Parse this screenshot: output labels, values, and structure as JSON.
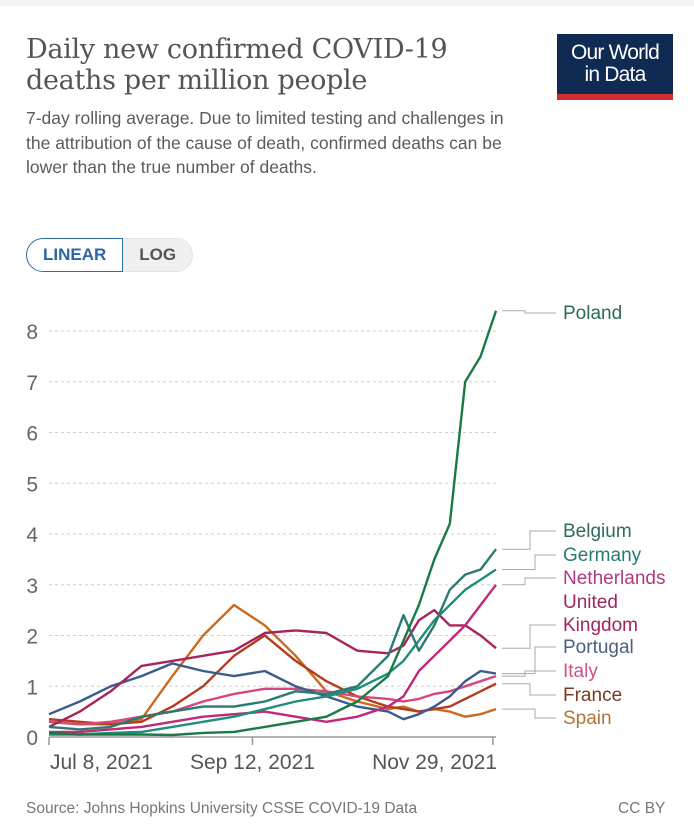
{
  "header": {
    "title": "Daily new confirmed COVID-19 deaths per million people",
    "title_line1": "Daily new confirmed COVID-19",
    "title_line2": "deaths per million people",
    "subtitle": "7-day rolling average. Due to limited testing and challenges in the attribution of the cause of death, confirmed deaths can be lower than the true number of deaths.",
    "logo_line1": "Our World",
    "logo_line2": "in Data"
  },
  "toggle": {
    "linear_label": "LINEAR",
    "log_label": "LOG",
    "selected": "LINEAR"
  },
  "footer": {
    "source": "Source: Johns Hopkins University CSSE COVID-19 Data",
    "license": "CC BY"
  },
  "chart_data": {
    "type": "line",
    "title": "Daily new confirmed COVID-19 deaths per million people",
    "xlabel": "",
    "ylabel": "",
    "ylim": [
      0,
      8.4
    ],
    "yticks": [
      "0",
      "1",
      "2",
      "3",
      "4",
      "5",
      "6",
      "7",
      "8"
    ],
    "xticks": [
      "Jul 8, 2021",
      "Sep 12, 2021",
      "Nov 29, 2021"
    ],
    "x_range_days": [
      0,
      145
    ],
    "x_tick_days": [
      0,
      66,
      144
    ],
    "grid": true,
    "legend": "right",
    "x_days": [
      0,
      10,
      20,
      30,
      40,
      50,
      60,
      70,
      80,
      90,
      100,
      110,
      115,
      120,
      125,
      130,
      135,
      140,
      145
    ],
    "series": [
      {
        "name": "Poland",
        "color": "#1a7a45",
        "values": [
          0.08,
          0.05,
          0.05,
          0.05,
          0.04,
          0.08,
          0.1,
          0.2,
          0.3,
          0.4,
          0.7,
          1.2,
          1.9,
          2.6,
          3.5,
          4.2,
          7.0,
          7.5,
          8.4
        ]
      },
      {
        "name": "Belgium",
        "color": "#2a7a6e",
        "values": [
          0.2,
          0.15,
          0.2,
          0.4,
          0.5,
          0.6,
          0.6,
          0.7,
          0.9,
          0.85,
          1.0,
          1.6,
          2.4,
          1.7,
          2.2,
          2.9,
          3.2,
          3.3,
          3.7
        ]
      },
      {
        "name": "Germany",
        "color": "#1f8e7a",
        "values": [
          0.05,
          0.05,
          0.08,
          0.1,
          0.2,
          0.3,
          0.4,
          0.55,
          0.7,
          0.8,
          0.95,
          1.25,
          1.5,
          1.9,
          2.3,
          2.6,
          2.9,
          3.1,
          3.3
        ]
      },
      {
        "name": "Netherlands",
        "color": "#c2287a",
        "values": [
          0.1,
          0.1,
          0.15,
          0.2,
          0.3,
          0.4,
          0.45,
          0.5,
          0.4,
          0.3,
          0.4,
          0.6,
          0.8,
          1.3,
          1.6,
          1.9,
          2.2,
          2.6,
          3.0
        ]
      },
      {
        "name": "United Kingdom",
        "color": "#a8245c",
        "values": [
          0.2,
          0.5,
          0.9,
          1.4,
          1.5,
          1.6,
          1.7,
          2.05,
          2.1,
          2.05,
          1.7,
          1.65,
          1.8,
          2.3,
          2.5,
          2.2,
          2.2,
          2.0,
          1.75
        ]
      },
      {
        "name": "Portugal",
        "color": "#3c5c8c",
        "values": [
          0.45,
          0.7,
          1.0,
          1.2,
          1.45,
          1.3,
          1.2,
          1.3,
          1.0,
          0.8,
          0.6,
          0.5,
          0.35,
          0.45,
          0.6,
          0.8,
          1.1,
          1.3,
          1.25
        ]
      },
      {
        "name": "Italy",
        "color": "#d9457e",
        "values": [
          0.3,
          0.25,
          0.3,
          0.4,
          0.5,
          0.7,
          0.85,
          0.95,
          0.95,
          0.9,
          0.8,
          0.75,
          0.7,
          0.75,
          0.85,
          0.9,
          1.0,
          1.1,
          1.2
        ]
      },
      {
        "name": "France",
        "color": "#b23c1f",
        "values": [
          0.35,
          0.3,
          0.25,
          0.3,
          0.6,
          1.0,
          1.6,
          2.0,
          1.5,
          1.1,
          0.8,
          0.6,
          0.55,
          0.5,
          0.55,
          0.6,
          0.75,
          0.9,
          1.05
        ]
      },
      {
        "name": "Spain",
        "color": "#c86b20",
        "values": [
          0.3,
          0.25,
          0.25,
          0.35,
          1.2,
          2.0,
          2.6,
          2.2,
          1.6,
          0.9,
          0.7,
          0.55,
          0.6,
          0.5,
          0.55,
          0.5,
          0.4,
          0.45,
          0.55
        ]
      }
    ],
    "labels": [
      {
        "name": "Poland",
        "text": [
          "Poland"
        ],
        "color": "#2f6b55"
      },
      {
        "name": "Belgium",
        "text": [
          "Belgium"
        ],
        "color": "#2f6b5e"
      },
      {
        "name": "Germany",
        "text": [
          "Germany"
        ],
        "color": "#2a7a6e"
      },
      {
        "name": "Netherlands",
        "text": [
          "Netherlands"
        ],
        "color": "#b03a82"
      },
      {
        "name": "United Kingdom",
        "text": [
          "United",
          "Kingdom"
        ],
        "color": "#9c2660"
      },
      {
        "name": "Portugal",
        "text": [
          "Portugal"
        ],
        "color": "#49607f"
      },
      {
        "name": "Italy",
        "text": [
          "Italy"
        ],
        "color": "#d0508a"
      },
      {
        "name": "France",
        "text": [
          "France"
        ],
        "color": "#7a3a20"
      },
      {
        "name": "Spain",
        "text": [
          "Spain"
        ],
        "color": "#b0743a"
      }
    ]
  }
}
